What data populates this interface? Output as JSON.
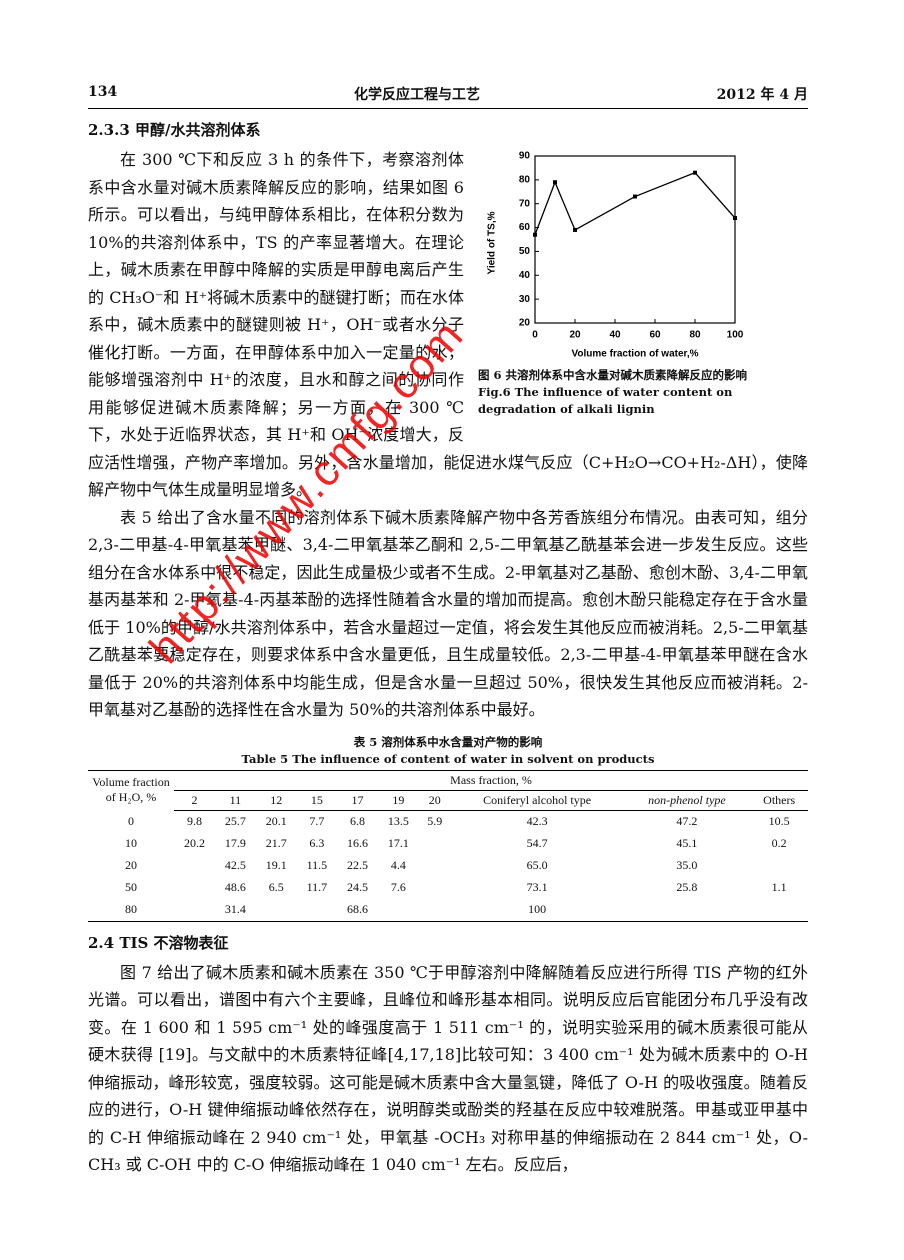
{
  "header": {
    "page": "134",
    "journal": "化学反应工程与工艺",
    "date": "2012 年 4 月"
  },
  "section_1": {
    "heading": "2.3.3 甲醇/水共溶剂体系",
    "paragraphs": [
      "在 300 ℃下和反应 3 h 的条件下，考察溶剂体系中含水量对碱木质素降解反应的影响，结果如图 6 所示。可以看出，与纯甲醇体系相比，在体积分数为 10%的共溶剂体系中，TS 的产率显著增大。在理论上，碱木质素在甲醇中降解的实质是甲醇电离后产生的 CH₃O⁻和 H⁺将碱木质素中的醚键打断；而在水体系中，碱木质素中的醚键则被 H⁺，OH⁻或者水分子催化打断。一方面，在甲醇体系中加入一定量的水，能够增强溶剂中 H⁺的浓度，且水和醇之间的协同作用能够促进碱木质素降解；另一方面，在 300 ℃下，水处于近临界状态，其 H⁺和 OH⁻浓度增大，反应活性增强，产物产率增加。另外，含水量增加，能促进水煤气反应（C+H₂O→CO+H₂-ΔH），使降解产物中气体生成量明显增多。",
      "表 5 给出了含水量不同的溶剂体系下碱木质素降解产物中各芳香族组分布情况。由表可知，组分 2,3-二甲基-4-甲氧基苯甲醚、3,4-二甲氧基苯乙酮和 2,5-二甲氧基乙酰基苯会进一步发生反应。这些组分在含水体系中很不稳定，因此生成量极少或者不生成。2-甲氧基对乙基酚、愈创木酚、3,4-二甲氧基丙基苯和 2-甲氧基-4-丙基苯酚的选择性随着含水量的增加而提高。愈创木酚只能稳定存在于含水量低于 10%的甲醇/水共溶剂体系中，若含水量超过一定值，将会发生其他反应而被消耗。2,5-二甲氧基乙酰基苯要稳定存在，则要求体系中含水量更低，且生成量较低。2,3-二甲基-4-甲氧基苯甲醚在含水量低于 20%的共溶剂体系中均能生成，但是含水量一旦超过 50%，很快发生其他反应而被消耗。2-甲氧基对乙基酚的选择性在含水量为 50%的共溶剂体系中最好。"
    ]
  },
  "chart_data": {
    "type": "line",
    "x": [
      0,
      10,
      20,
      50,
      80,
      100
    ],
    "values": [
      57,
      79,
      59,
      73,
      83,
      64
    ],
    "color": "#000000",
    "xlim": [
      0,
      100
    ],
    "xticks": [
      0,
      20,
      40,
      60,
      80,
      100
    ],
    "ylim": [
      20,
      90
    ],
    "yticks": [
      20,
      30,
      40,
      50,
      60,
      70,
      80,
      90
    ],
    "xlabel": "Volume fraction of water,%",
    "ylabel": "Yield of TS,%"
  },
  "figure_caption": {
    "zh": "图 6 共溶剂体系中含水量对碱木质素降解反应的影响",
    "en": "Fig.6 The influence of water content on degradation of alkali lignin"
  },
  "table": {
    "caption_zh": "表 5 溶剂体系中水含量对产物的影响",
    "caption_en": "Table 5 The influence of content of water in solvent on products",
    "header": [
      "Volume fraction of H₂O, %",
      "Mass fraction, %",
      "2",
      "11",
      "12",
      "15",
      "17",
      "19",
      "20",
      "Coniferyl alcohol type",
      "non-phenol type",
      "Others"
    ],
    "rows": [
      [
        "0",
        "9.8",
        "25.7",
        "20.1",
        "7.7",
        "6.8",
        "13.5",
        "5.9",
        "42.3",
        "47.2",
        "10.5"
      ],
      [
        "10",
        "20.2",
        "17.9",
        "21.7",
        "6.3",
        "16.6",
        "17.1",
        null,
        "54.7",
        "45.1",
        "0.2"
      ],
      [
        "20",
        null,
        "42.5",
        "19.1",
        "11.5",
        "22.5",
        "4.4",
        null,
        "65.0",
        "35.0",
        null
      ],
      [
        "50",
        null,
        "48.6",
        "6.5",
        "11.7",
        "24.5",
        "7.6",
        null,
        "73.1",
        "25.8",
        "1.1"
      ],
      [
        "80",
        null,
        "31.4",
        null,
        null,
        "68.6",
        null,
        null,
        "100",
        null,
        null
      ]
    ]
  },
  "section_2": {
    "heading": "2.4 TIS 不溶物表征",
    "paragraphs": [
      "图 7 给出了碱木质素和碱木质素在 350 ℃于甲醇溶剂中降解随着反应进行所得 TIS 产物的红外光谱。可以看出，谱图中有六个主要峰，且峰位和峰形基本相同。说明反应后官能团分布几乎没有改变。在 1 600 和 1 595 cm⁻¹ 处的峰强度高于 1 511 cm⁻¹ 的，说明实验采用的碱木质素很可能从硬木获得 [19]。与文献中的木质素特征峰[4,17,18]比较可知：3 400 cm⁻¹ 处为碱木质素中的 O-H 伸缩振动，峰形较宽，强度较弱。这可能是碱木质素中含大量氢键，降低了 O-H 的吸收强度。随着反应的进行，O-H 键伸缩振动峰依然存在，说明醇类或酚类的羟基在反应中较难脱落。甲基或亚甲基中的 C-H 伸缩振动峰在 2 940 cm⁻¹ 处，甲氧基 -OCH₃ 对称甲基的伸缩振动在 2 844 cm⁻¹ 处，O-CH₃ 或 C-OH 中的 C-O 伸缩振动峰在 1 040 cm⁻¹ 左右。反应后，"
    ]
  },
  "watermark": "http://www.cmfg.com"
}
